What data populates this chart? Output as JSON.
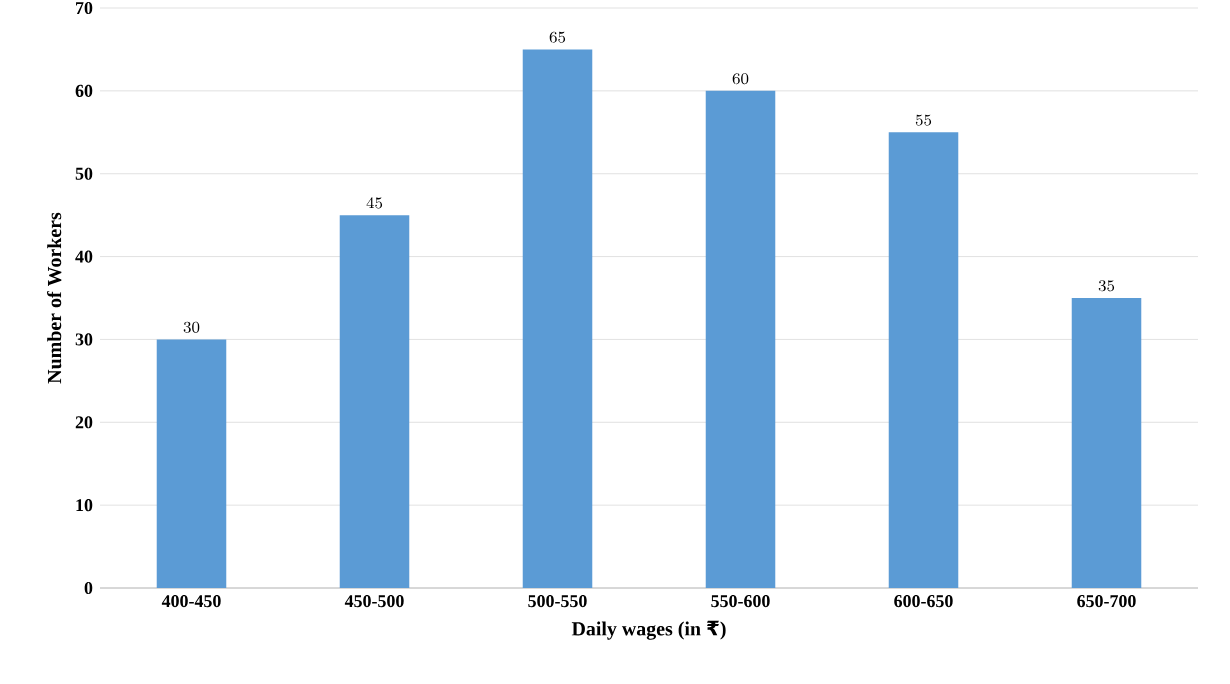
{
  "chart_data": {
    "type": "bar",
    "xlabel": "Daily wages (in ₹)",
    "ylabel": "Number of Workers",
    "categories": [
      "400-450",
      "450-500",
      "500-550",
      "550-600",
      "600-650",
      "650-700"
    ],
    "values": [
      30,
      45,
      65,
      60,
      55,
      35
    ],
    "color": "#5b9bd5",
    "ylim": [
      0,
      70
    ],
    "yticks": [
      0,
      10,
      20,
      30,
      40,
      50,
      60,
      70
    ],
    "grid": "y",
    "data_labels": true
  }
}
